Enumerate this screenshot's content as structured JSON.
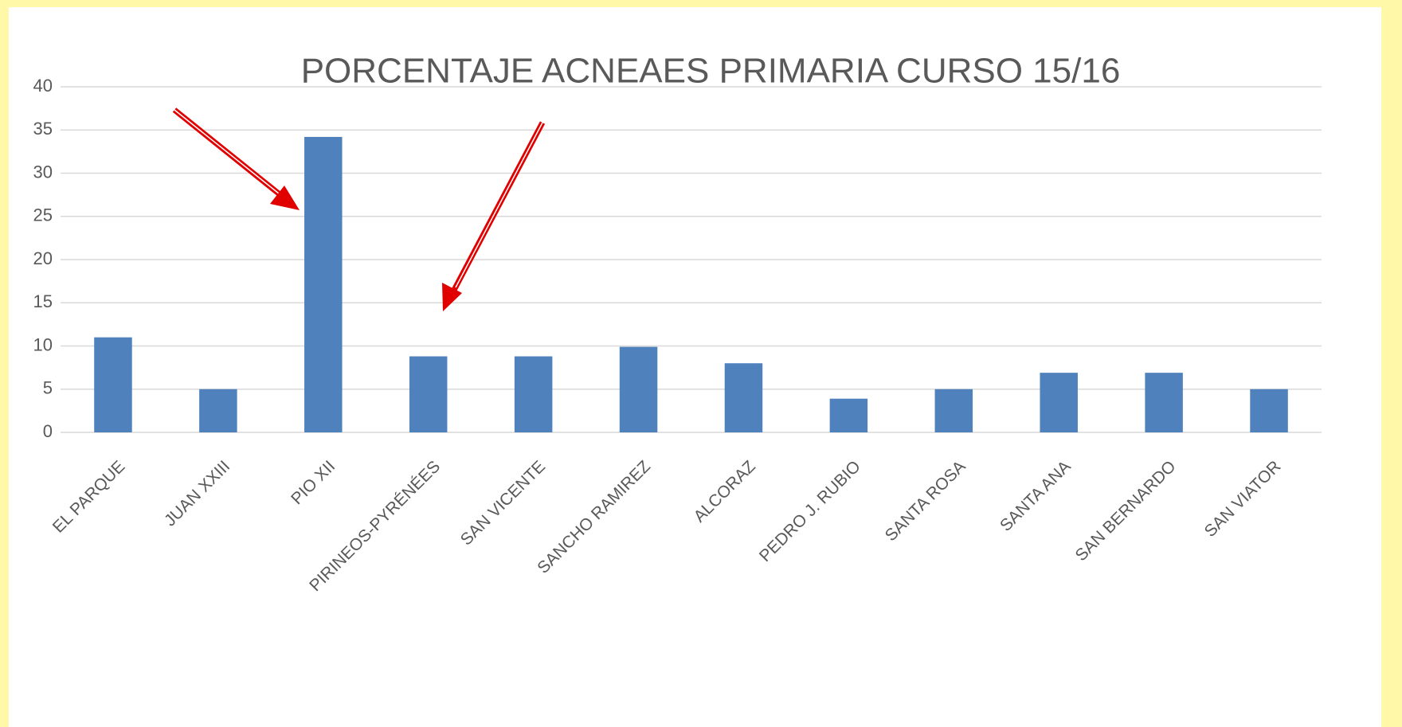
{
  "chart_data": {
    "type": "bar",
    "title": "PORCENTAJE ACNEAES PRIMARIA CURSO 15/16",
    "categories": [
      "EL PARQUE",
      "JUAN XXIII",
      "PIO XII",
      "PIRINEOS-PYRÉNÉES",
      "SAN VICENTE",
      "SANCHO RAMIREZ",
      "ALCORAZ",
      "PEDRO J. RUBIO",
      "SANTA ROSA",
      "SANTA ANA",
      "SAN BERNARDO",
      "SAN VIATOR"
    ],
    "values": [
      11,
      5,
      34.2,
      8.8,
      8.8,
      9.9,
      8,
      3.9,
      5,
      6.9,
      6.9,
      5
    ],
    "color": "#4f81bd",
    "ylim": [
      0,
      40
    ],
    "yticks": [
      0,
      5,
      10,
      15,
      20,
      25,
      30,
      35,
      40
    ],
    "grid": true
  }
}
